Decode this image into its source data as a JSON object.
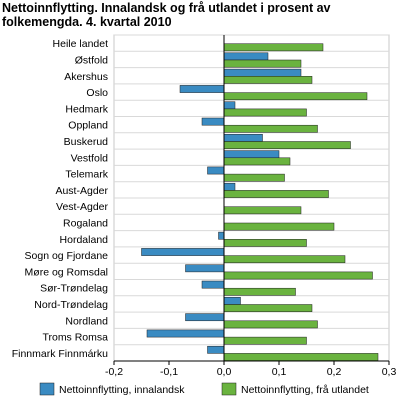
{
  "title": "Nettoinnflytting. Innalandsk og frå utlandet i prosent av folkemengda. 4. kvartal 2010",
  "chart_data": {
    "type": "bar",
    "orientation": "horizontal",
    "title": "Nettoinnflytting. Innalandsk og frå utlandet i prosent av folkemengda. 4. kvartal 2010",
    "categories": [
      "Heile landet",
      "Østfold",
      "Akershus",
      "Oslo",
      "Hedmark",
      "Oppland",
      "Buskerud",
      "Vestfold",
      "Telemark",
      "Aust-Agder",
      "Vest-Agder",
      "Rogaland",
      "Hordaland",
      "Sogn og Fjordane",
      "Møre og Romsdal",
      "Sør-Trøndelag",
      "Nord-Trøndelag",
      "Nordland",
      "Troms Romsa",
      "Finnmark Finnmárku"
    ],
    "series": [
      {
        "name": "Nettoinnflytting, innalandsk",
        "color": "#3a8bc2",
        "values": [
          0,
          0.08,
          0.14,
          -0.08,
          0.02,
          -0.04,
          0.07,
          0.1,
          -0.03,
          0.02,
          0,
          0,
          -0.01,
          -0.15,
          -0.07,
          -0.04,
          0.03,
          -0.07,
          -0.14,
          -0.03
        ]
      },
      {
        "name": "Nettoinnflytting, frå utlandet",
        "color": "#6ab33f",
        "values": [
          0.18,
          0.14,
          0.16,
          0.26,
          0.15,
          0.17,
          0.23,
          0.12,
          0.11,
          0.19,
          0.14,
          0.2,
          0.15,
          0.22,
          0.27,
          0.13,
          0.16,
          0.17,
          0.15,
          0.28
        ]
      }
    ],
    "x_ticks": [
      "-0,2",
      "-0,1",
      "0,0",
      "0,1",
      "0,2",
      "0,3"
    ],
    "xlim": [
      -0.2,
      0.3
    ],
    "grid": true,
    "legend_position": "bottom"
  }
}
